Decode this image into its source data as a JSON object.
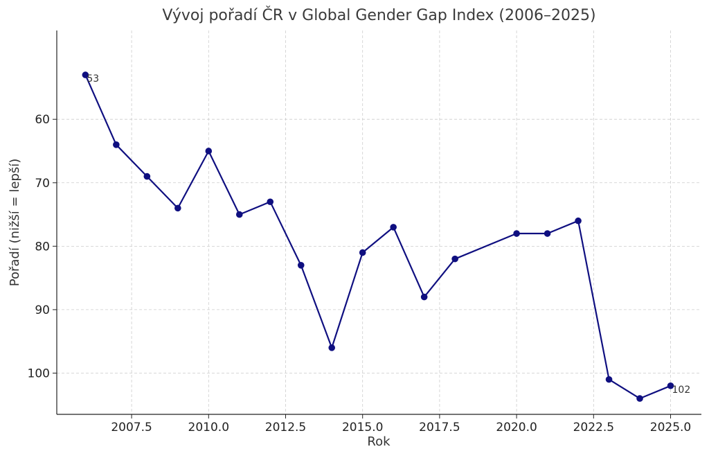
{
  "chart_data": {
    "type": "line",
    "title": "Vývoj pořadí ČR v Global Gender Gap Index (2006–2025)",
    "xlabel": "Rok",
    "ylabel": "Pořadí (nižší = lepší)",
    "x": [
      2006,
      2007,
      2008,
      2009,
      2010,
      2011,
      2012,
      2013,
      2014,
      2015,
      2016,
      2017,
      2018,
      2020,
      2021,
      2022,
      2023,
      2024,
      2025
    ],
    "series": [
      {
        "values": [
          53,
          64,
          69,
          74,
          65,
          75,
          73,
          83,
          96,
          81,
          77,
          88,
          82,
          78,
          78,
          76,
          101,
          104,
          102
        ]
      }
    ],
    "xticks": [
      "2007.5",
      "2010.0",
      "2012.5",
      "2015.0",
      "2017.5",
      "2020.0",
      "2022.5",
      "2025.0"
    ],
    "yticks": [
      "60",
      "70",
      "80",
      "90",
      "100"
    ],
    "xlim": [
      2005.07,
      2026.0
    ],
    "ylim": [
      46,
      106.5
    ],
    "y_inverted": true,
    "grid": true,
    "annotations": [
      {
        "x": 2006,
        "y": 53,
        "text": "53"
      },
      {
        "x": 2025,
        "y": 102,
        "text": "102"
      }
    ],
    "line_color": "#0f0f80"
  }
}
